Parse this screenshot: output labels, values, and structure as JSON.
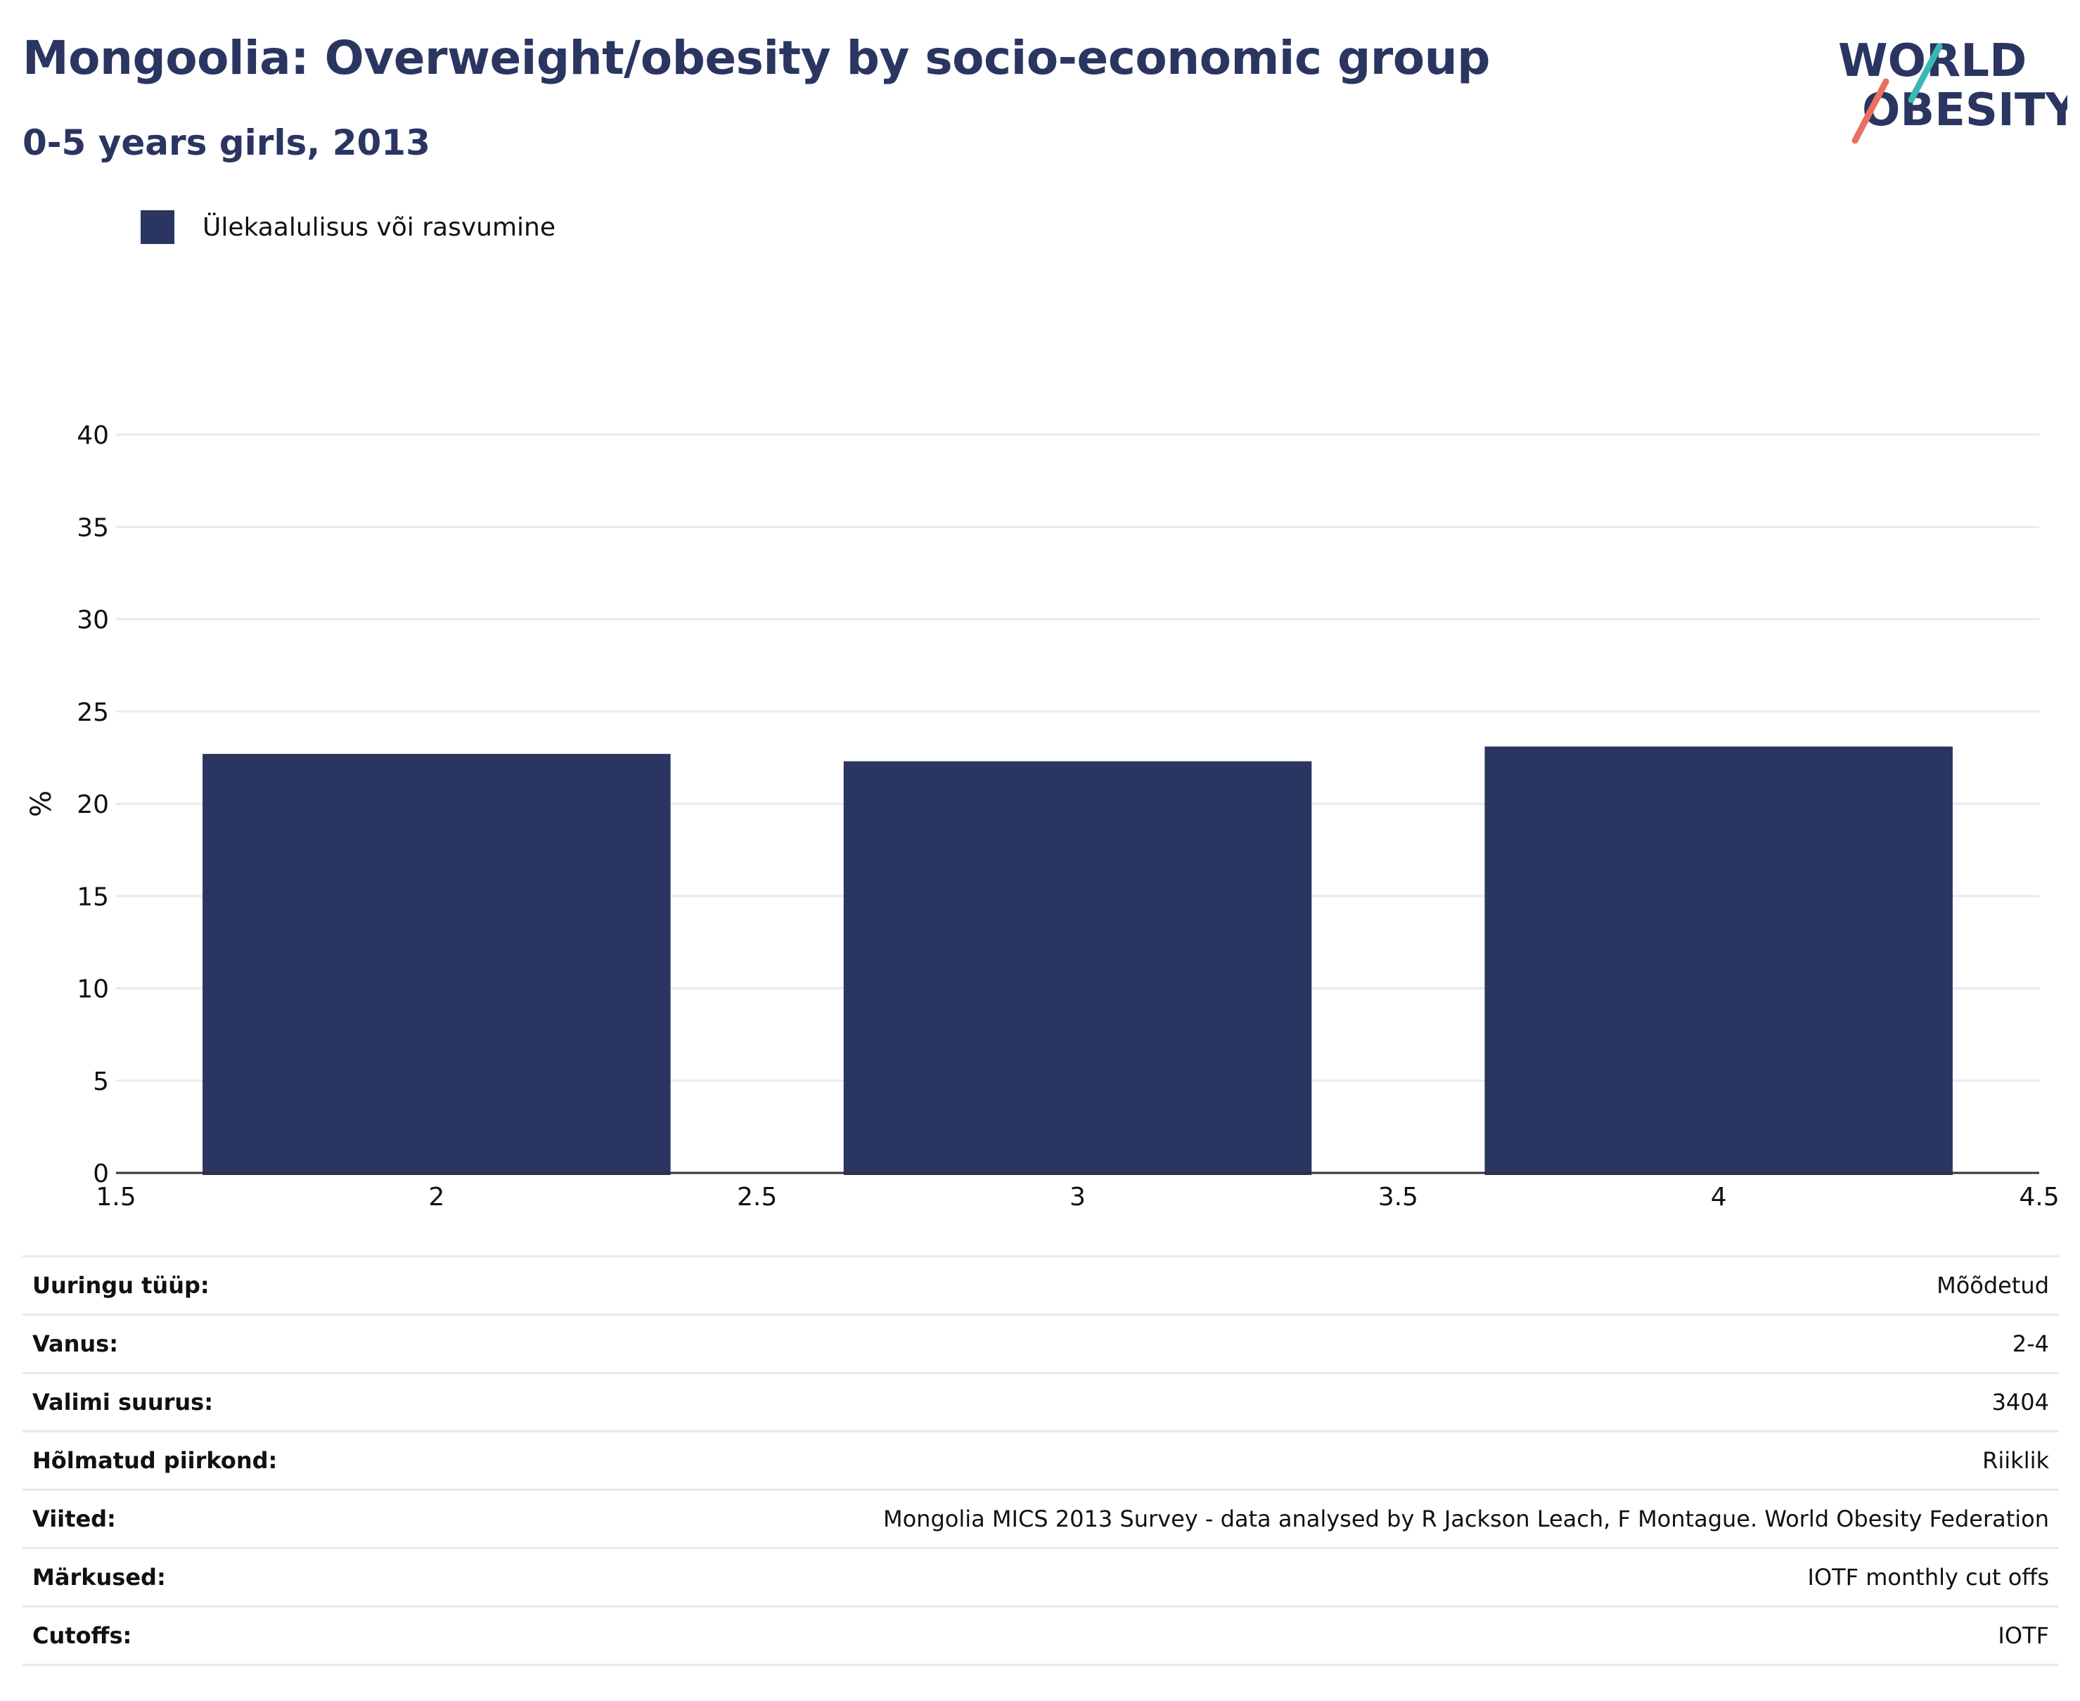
{
  "header": {
    "title": "Mongoolia: Overweight/obesity by socio-economic group",
    "subtitle": "0-5 years girls, 2013"
  },
  "logo": {
    "line1": "WORLD",
    "line2": "OBESITY"
  },
  "colors": {
    "bar": "#2a3561",
    "grid": "#e6ebf2",
    "axis": "#333333",
    "logo_teal": "#3bb7b5",
    "logo_coral": "#e9705f"
  },
  "chart_data": {
    "type": "bar",
    "legend": [
      "Ülekaalulisus või rasvumine"
    ],
    "legend_position": "top-left",
    "x": [
      2,
      3,
      4
    ],
    "series": [
      {
        "name": "Ülekaalulisus või rasvumine",
        "values": [
          22.7,
          22.3,
          23.1
        ]
      }
    ],
    "xlim": [
      1.5,
      4.5
    ],
    "ylim": [
      0,
      40
    ],
    "x_ticks": [
      "1.5",
      "2",
      "2.5",
      "3",
      "3.5",
      "4",
      "4.5"
    ],
    "y_ticks": [
      "0",
      "5",
      "10",
      "15",
      "20",
      "25",
      "30",
      "35",
      "40"
    ],
    "ylabel": "%",
    "xlabel": "",
    "grid": true
  },
  "info": [
    {
      "label": "Uuringu tüüp:",
      "value": "Mõõdetud"
    },
    {
      "label": "Vanus:",
      "value": "2-4"
    },
    {
      "label": "Valimi suurus:",
      "value": "3404"
    },
    {
      "label": "Hõlmatud piirkond:",
      "value": "Riiklik"
    },
    {
      "label": "Viited:",
      "value": "Mongolia MICS 2013 Survey - data analysed by R Jackson Leach, F Montague. World Obesity Federation"
    },
    {
      "label": "Märkused:",
      "value": "IOTF monthly cut offs"
    },
    {
      "label": "Cutoffs:",
      "value": "IOTF"
    }
  ]
}
